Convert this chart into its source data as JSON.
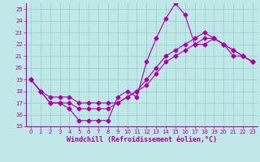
{
  "xlabel": "Windchill (Refroidissement éolien,°C)",
  "bg_color": "#c0e8e8",
  "line_color": "#aa00aa",
  "grid_color": "#99cccc",
  "xlim": [
    -0.5,
    23.5
  ],
  "ylim": [
    15,
    25.5
  ],
  "xticks": [
    0,
    1,
    2,
    3,
    4,
    5,
    6,
    7,
    8,
    9,
    10,
    11,
    12,
    13,
    14,
    15,
    16,
    17,
    18,
    19,
    20,
    21,
    22,
    23
  ],
  "yticks": [
    15,
    16,
    17,
    18,
    19,
    20,
    21,
    22,
    23,
    24,
    25
  ],
  "line1_x": [
    0,
    1,
    2,
    3,
    4,
    5,
    6,
    7,
    8,
    9,
    10,
    11,
    12,
    13,
    14,
    15,
    16,
    17,
    18,
    19,
    20,
    21,
    22,
    23
  ],
  "line1_y": [
    19.0,
    18.0,
    17.0,
    17.0,
    16.5,
    15.5,
    15.5,
    15.5,
    15.5,
    17.5,
    18.0,
    17.5,
    20.5,
    22.5,
    24.2,
    25.5,
    24.5,
    22.0,
    22.0,
    22.5,
    22.0,
    21.0,
    21.0,
    20.5
  ],
  "line2_x": [
    0,
    1,
    2,
    3,
    4,
    5,
    6,
    7,
    8,
    9,
    10,
    11,
    12,
    13,
    14,
    15,
    16,
    17,
    18,
    19,
    20,
    21,
    22,
    23
  ],
  "line2_y": [
    19.0,
    18.0,
    17.0,
    17.0,
    17.0,
    16.5,
    16.5,
    16.5,
    16.5,
    17.0,
    17.5,
    18.0,
    19.0,
    20.0,
    21.0,
    21.5,
    22.0,
    22.5,
    23.0,
    22.5,
    22.0,
    21.5,
    21.0,
    20.5
  ],
  "line3_x": [
    0,
    1,
    2,
    3,
    4,
    5,
    6,
    7,
    8,
    9,
    10,
    11,
    12,
    13,
    14,
    15,
    16,
    17,
    18,
    19,
    20,
    21,
    22,
    23
  ],
  "line3_y": [
    19.0,
    18.0,
    17.5,
    17.5,
    17.5,
    17.0,
    17.0,
    17.0,
    17.0,
    17.0,
    17.5,
    18.0,
    18.5,
    19.5,
    20.5,
    21.0,
    21.5,
    22.0,
    22.5,
    22.5,
    22.0,
    21.5,
    21.0,
    20.5
  ],
  "marker_size": 2.5,
  "line_width": 0.8,
  "tick_fontsize": 5.0,
  "label_fontsize": 6.0
}
